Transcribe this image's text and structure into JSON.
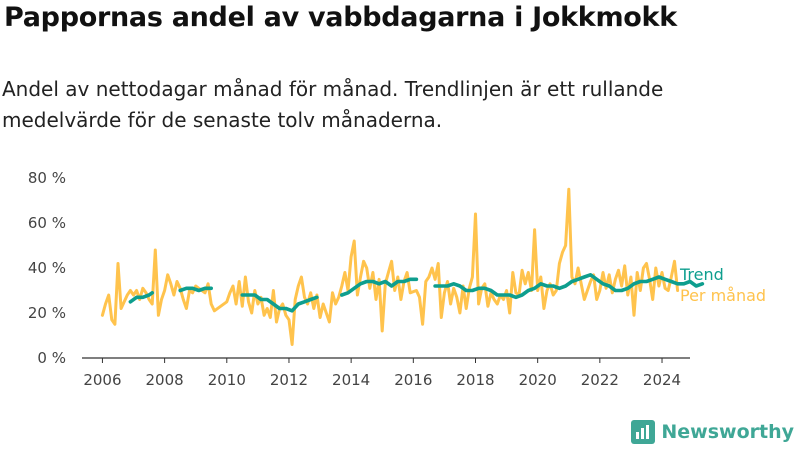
{
  "title": "Pappornas andel av vabbdagarna i Jokkmokk",
  "subtitle": "Andel av nettodagar månad för månad. Trendlinjen är ett rullande medelvärde för de senaste tolv månaderna.",
  "brand": {
    "name": "Newsworthy",
    "color": "#3fa796"
  },
  "colors": {
    "monthly": "#ffc34d",
    "trend": "#0e9e8e",
    "axis": "#333333"
  },
  "chart_data": {
    "type": "line",
    "xlabel": "",
    "ylabel": "",
    "xlim": [
      2005.6,
      2024.9
    ],
    "ylim": [
      0,
      80
    ],
    "x_ticks": [
      2006,
      2008,
      2010,
      2012,
      2014,
      2016,
      2018,
      2020,
      2022,
      2024
    ],
    "x_tick_labels": [
      "2006",
      "2008",
      "2010",
      "2012",
      "2014",
      "2016",
      "2018",
      "2020",
      "2022",
      "2024"
    ],
    "y_ticks": [
      0,
      20,
      40,
      60,
      80
    ],
    "y_tick_labels": [
      "0 %",
      "20 %",
      "40 %",
      "60 %",
      "80 %"
    ],
    "series": [
      {
        "name": "Per månad",
        "color": "#ffc34d",
        "points": [
          [
            2006.0,
            19
          ],
          [
            2006.1,
            24
          ],
          [
            2006.2,
            28
          ],
          [
            2006.3,
            17
          ],
          [
            2006.4,
            15
          ],
          [
            2006.5,
            42
          ],
          [
            2006.6,
            22
          ],
          [
            2006.7,
            25
          ],
          [
            2006.8,
            28
          ],
          [
            2006.9,
            30
          ],
          [
            2007.0,
            28
          ],
          [
            2007.1,
            30
          ],
          [
            2007.2,
            26
          ],
          [
            2007.3,
            31
          ],
          [
            2007.4,
            29
          ],
          [
            2007.5,
            26
          ],
          [
            2007.6,
            24
          ],
          [
            2007.7,
            48
          ],
          [
            2007.8,
            19
          ],
          [
            2007.9,
            26
          ],
          [
            2008.0,
            30
          ],
          [
            2008.1,
            37
          ],
          [
            2008.2,
            33
          ],
          [
            2008.3,
            28
          ],
          [
            2008.4,
            34
          ],
          [
            2008.5,
            31
          ],
          [
            2008.6,
            26
          ],
          [
            2008.7,
            22
          ],
          [
            2008.8,
            30
          ],
          [
            2008.9,
            29
          ],
          [
            2009.0,
            32
          ],
          [
            2009.1,
            31
          ],
          [
            2009.2,
            30
          ],
          [
            2009.3,
            29
          ],
          [
            2009.4,
            33
          ],
          [
            2009.5,
            24
          ],
          [
            2009.6,
            21
          ],
          [
            2010.0,
            25
          ],
          [
            2010.1,
            29
          ],
          [
            2010.2,
            32
          ],
          [
            2010.3,
            24
          ],
          [
            2010.4,
            34
          ],
          [
            2010.5,
            23
          ],
          [
            2010.6,
            36
          ],
          [
            2010.7,
            25
          ],
          [
            2010.8,
            20
          ],
          [
            2010.9,
            30
          ],
          [
            2011.0,
            24
          ],
          [
            2011.1,
            27
          ],
          [
            2011.2,
            19
          ],
          [
            2011.3,
            22
          ],
          [
            2011.4,
            18
          ],
          [
            2011.5,
            30
          ],
          [
            2011.6,
            16
          ],
          [
            2011.7,
            22
          ],
          [
            2011.8,
            24
          ],
          [
            2011.9,
            19
          ],
          [
            2012.0,
            17
          ],
          [
            2012.1,
            6
          ],
          [
            2012.2,
            26
          ],
          [
            2012.3,
            32
          ],
          [
            2012.4,
            36
          ],
          [
            2012.5,
            27
          ],
          [
            2012.6,
            24
          ],
          [
            2012.7,
            29
          ],
          [
            2012.8,
            22
          ],
          [
            2012.9,
            28
          ],
          [
            2013.0,
            18
          ],
          [
            2013.1,
            24
          ],
          [
            2013.2,
            20
          ],
          [
            2013.3,
            16
          ],
          [
            2013.4,
            29
          ],
          [
            2013.5,
            24
          ],
          [
            2013.6,
            27
          ],
          [
            2013.7,
            32
          ],
          [
            2013.8,
            38
          ],
          [
            2013.9,
            30
          ],
          [
            2014.0,
            45
          ],
          [
            2014.1,
            52
          ],
          [
            2014.2,
            28
          ],
          [
            2014.3,
            36
          ],
          [
            2014.4,
            43
          ],
          [
            2014.5,
            40
          ],
          [
            2014.6,
            31
          ],
          [
            2014.7,
            38
          ],
          [
            2014.8,
            26
          ],
          [
            2014.9,
            35
          ],
          [
            2015.0,
            12
          ],
          [
            2015.1,
            33
          ],
          [
            2015.2,
            38
          ],
          [
            2015.3,
            43
          ],
          [
            2015.4,
            30
          ],
          [
            2015.5,
            36
          ],
          [
            2015.6,
            26
          ],
          [
            2015.7,
            34
          ],
          [
            2015.8,
            38
          ],
          [
            2015.9,
            29
          ],
          [
            2016.1,
            30
          ],
          [
            2016.2,
            27
          ],
          [
            2016.3,
            15
          ],
          [
            2016.4,
            34
          ],
          [
            2016.5,
            36
          ],
          [
            2016.6,
            40
          ],
          [
            2016.7,
            35
          ],
          [
            2016.8,
            42
          ],
          [
            2016.9,
            18
          ],
          [
            2017.0,
            29
          ],
          [
            2017.1,
            34
          ],
          [
            2017.2,
            24
          ],
          [
            2017.3,
            31
          ],
          [
            2017.4,
            27
          ],
          [
            2017.5,
            20
          ],
          [
            2017.6,
            32
          ],
          [
            2017.7,
            22
          ],
          [
            2017.8,
            31
          ],
          [
            2017.9,
            36
          ],
          [
            2018.0,
            64
          ],
          [
            2018.1,
            24
          ],
          [
            2018.2,
            31
          ],
          [
            2018.3,
            33
          ],
          [
            2018.4,
            23
          ],
          [
            2018.5,
            29
          ],
          [
            2018.6,
            26
          ],
          [
            2018.7,
            24
          ],
          [
            2018.8,
            28
          ],
          [
            2018.9,
            26
          ],
          [
            2019.0,
            30
          ],
          [
            2019.1,
            20
          ],
          [
            2019.2,
            38
          ],
          [
            2019.3,
            29
          ],
          [
            2019.4,
            28
          ],
          [
            2019.5,
            39
          ],
          [
            2019.6,
            33
          ],
          [
            2019.7,
            38
          ],
          [
            2019.8,
            30
          ],
          [
            2019.9,
            57
          ],
          [
            2020.0,
            30
          ],
          [
            2020.1,
            36
          ],
          [
            2020.2,
            22
          ],
          [
            2020.3,
            30
          ],
          [
            2020.4,
            33
          ],
          [
            2020.5,
            28
          ],
          [
            2020.6,
            30
          ],
          [
            2020.7,
            42
          ],
          [
            2020.8,
            47
          ],
          [
            2020.9,
            50
          ],
          [
            2021.0,
            75
          ],
          [
            2021.1,
            36
          ],
          [
            2021.2,
            33
          ],
          [
            2021.3,
            40
          ],
          [
            2021.4,
            33
          ],
          [
            2021.5,
            26
          ],
          [
            2021.6,
            30
          ],
          [
            2021.7,
            34
          ],
          [
            2021.8,
            37
          ],
          [
            2021.9,
            26
          ],
          [
            2022.0,
            30
          ],
          [
            2022.1,
            38
          ],
          [
            2022.2,
            31
          ],
          [
            2022.3,
            37
          ],
          [
            2022.4,
            29
          ],
          [
            2022.5,
            35
          ],
          [
            2022.6,
            39
          ],
          [
            2022.7,
            32
          ],
          [
            2022.8,
            41
          ],
          [
            2022.9,
            28
          ],
          [
            2023.0,
            36
          ],
          [
            2023.1,
            19
          ],
          [
            2023.2,
            38
          ],
          [
            2023.3,
            30
          ],
          [
            2023.4,
            40
          ],
          [
            2023.5,
            42
          ],
          [
            2023.6,
            35
          ],
          [
            2023.7,
            26
          ],
          [
            2023.8,
            40
          ],
          [
            2023.9,
            32
          ],
          [
            2024.0,
            38
          ],
          [
            2024.1,
            31
          ],
          [
            2024.2,
            30
          ],
          [
            2024.3,
            36
          ],
          [
            2024.4,
            43
          ],
          [
            2024.5,
            30
          ]
        ]
      },
      {
        "name": "Trend",
        "color": "#0e9e8e",
        "points": [
          [
            2006.9,
            25
          ],
          [
            2007.1,
            27
          ],
          [
            2007.3,
            27
          ],
          [
            2007.5,
            28
          ],
          [
            2007.6,
            29
          ],
          null,
          [
            2008.5,
            30
          ],
          [
            2008.7,
            31
          ],
          [
            2008.9,
            31
          ],
          [
            2009.1,
            30
          ],
          [
            2009.3,
            31
          ],
          [
            2009.5,
            31
          ],
          null,
          [
            2010.5,
            28
          ],
          [
            2010.7,
            28
          ],
          [
            2010.9,
            28
          ],
          [
            2011.1,
            26
          ],
          [
            2011.3,
            26
          ],
          [
            2011.5,
            24
          ],
          [
            2011.7,
            22
          ],
          [
            2011.9,
            22
          ],
          [
            2012.1,
            21
          ],
          [
            2012.3,
            24
          ],
          [
            2012.5,
            25
          ],
          [
            2012.7,
            26
          ],
          [
            2012.9,
            27
          ],
          null,
          [
            2013.7,
            28
          ],
          [
            2013.9,
            29
          ],
          [
            2014.1,
            31
          ],
          [
            2014.3,
            33
          ],
          [
            2014.5,
            34
          ],
          [
            2014.7,
            34
          ],
          [
            2014.9,
            33
          ],
          [
            2015.1,
            34
          ],
          [
            2015.3,
            32
          ],
          [
            2015.5,
            34
          ],
          [
            2015.7,
            34
          ],
          [
            2015.9,
            35
          ],
          [
            2016.1,
            35
          ],
          null,
          [
            2016.7,
            32
          ],
          [
            2016.9,
            32
          ],
          [
            2017.1,
            32
          ],
          [
            2017.3,
            33
          ],
          [
            2017.5,
            32
          ],
          [
            2017.7,
            30
          ],
          [
            2017.9,
            30
          ],
          [
            2018.1,
            31
          ],
          [
            2018.3,
            31
          ],
          [
            2018.5,
            30
          ],
          [
            2018.7,
            28
          ],
          [
            2018.9,
            28
          ],
          [
            2019.1,
            28
          ],
          [
            2019.3,
            27
          ],
          [
            2019.5,
            28
          ],
          [
            2019.7,
            30
          ],
          [
            2019.9,
            31
          ],
          [
            2020.1,
            33
          ],
          [
            2020.3,
            32
          ],
          [
            2020.5,
            32
          ],
          [
            2020.7,
            31
          ],
          [
            2020.9,
            32
          ],
          [
            2021.1,
            34
          ],
          [
            2021.3,
            35
          ],
          [
            2021.5,
            36
          ],
          [
            2021.7,
            37
          ],
          [
            2021.9,
            35
          ],
          [
            2022.1,
            33
          ],
          [
            2022.3,
            32
          ],
          [
            2022.5,
            30
          ],
          [
            2022.7,
            30
          ],
          [
            2022.9,
            31
          ],
          [
            2023.1,
            33
          ],
          [
            2023.3,
            34
          ],
          [
            2023.5,
            34
          ],
          [
            2023.7,
            35
          ],
          [
            2023.9,
            36
          ],
          [
            2024.1,
            35
          ],
          [
            2024.3,
            34
          ],
          [
            2024.5,
            33
          ],
          [
            2024.7,
            33
          ],
          [
            2024.9,
            34
          ],
          [
            2025.1,
            32
          ],
          [
            2025.3,
            33
          ]
        ]
      }
    ],
    "legend": [
      {
        "label": "Trend",
        "color": "#0e9e8e"
      },
      {
        "label": "Per månad",
        "color": "#ffc34d"
      }
    ],
    "legend_position": "right"
  }
}
